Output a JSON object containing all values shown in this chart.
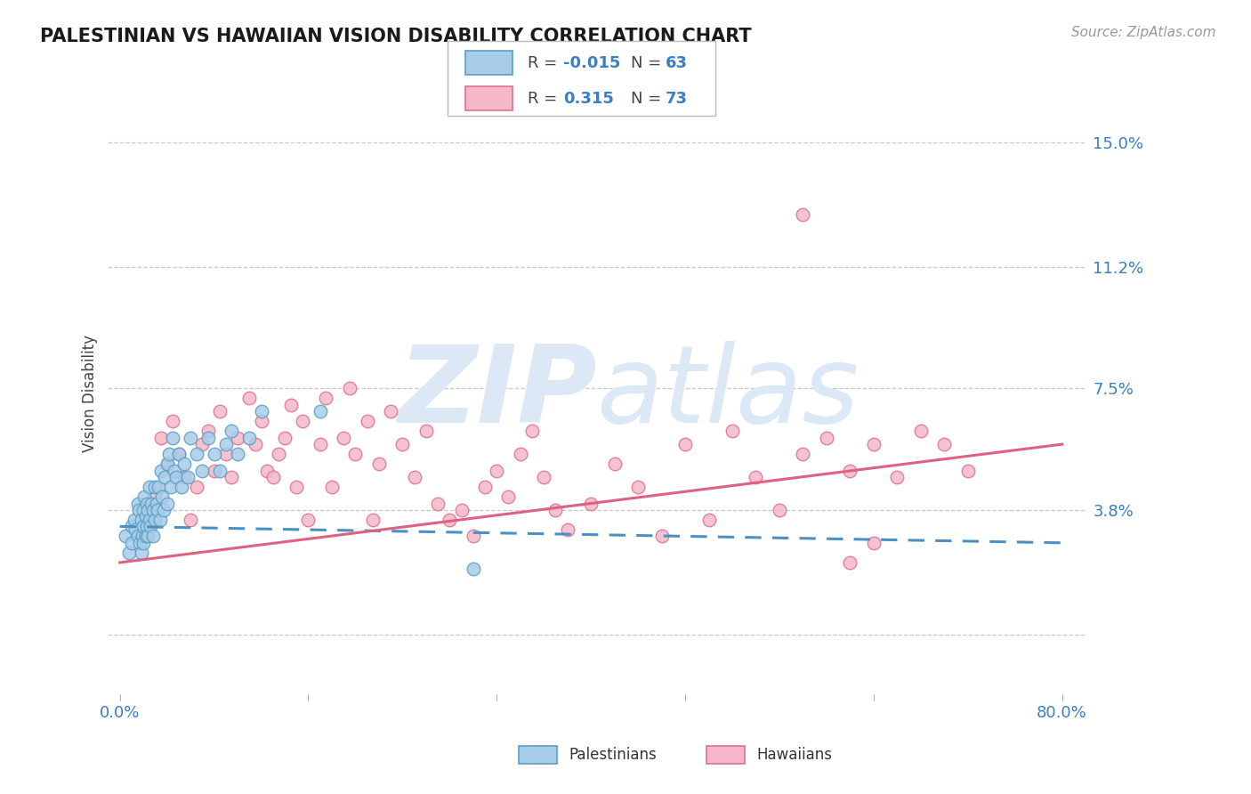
{
  "title": "PALESTINIAN VS HAWAIIAN VISION DISABILITY CORRELATION CHART",
  "source": "Source: ZipAtlas.com",
  "ylabel": "Vision Disability",
  "xlim": [
    -0.01,
    0.82
  ],
  "ylim": [
    -0.018,
    0.165
  ],
  "yticks": [
    0.0,
    0.038,
    0.075,
    0.112,
    0.15
  ],
  "ytick_labels": [
    "",
    "3.8%",
    "7.5%",
    "11.2%",
    "15.0%"
  ],
  "xticks": [
    0.0,
    0.16,
    0.32,
    0.48,
    0.64,
    0.8
  ],
  "xtick_labels": [
    "0.0%",
    "",
    "",
    "",
    "",
    "80.0%"
  ],
  "pal_color": "#a8cce8",
  "haw_color": "#f4b8c8",
  "pal_edge_color": "#5b9fc7",
  "haw_edge_color": "#e07090",
  "pal_line_color": "#4a90c4",
  "haw_line_color": "#e06080",
  "grid_color": "#c8c8c8",
  "background_color": "#ffffff",
  "watermark_color": "#dce8f5",
  "pal_scatter_x": [
    0.005,
    0.008,
    0.01,
    0.01,
    0.012,
    0.013,
    0.015,
    0.015,
    0.016,
    0.017,
    0.018,
    0.018,
    0.019,
    0.02,
    0.02,
    0.02,
    0.021,
    0.022,
    0.022,
    0.023,
    0.023,
    0.024,
    0.024,
    0.025,
    0.025,
    0.026,
    0.027,
    0.028,
    0.028,
    0.03,
    0.03,
    0.031,
    0.032,
    0.033,
    0.034,
    0.035,
    0.036,
    0.037,
    0.038,
    0.04,
    0.04,
    0.042,
    0.043,
    0.045,
    0.046,
    0.048,
    0.05,
    0.052,
    0.055,
    0.058,
    0.06,
    0.065,
    0.07,
    0.075,
    0.08,
    0.085,
    0.09,
    0.095,
    0.1,
    0.11,
    0.12,
    0.17,
    0.3
  ],
  "pal_scatter_y": [
    0.03,
    0.025,
    0.033,
    0.028,
    0.035,
    0.032,
    0.04,
    0.03,
    0.038,
    0.028,
    0.035,
    0.025,
    0.03,
    0.038,
    0.033,
    0.028,
    0.042,
    0.036,
    0.03,
    0.04,
    0.033,
    0.038,
    0.03,
    0.045,
    0.035,
    0.033,
    0.04,
    0.038,
    0.03,
    0.045,
    0.035,
    0.04,
    0.038,
    0.045,
    0.035,
    0.05,
    0.042,
    0.038,
    0.048,
    0.052,
    0.04,
    0.055,
    0.045,
    0.06,
    0.05,
    0.048,
    0.055,
    0.045,
    0.052,
    0.048,
    0.06,
    0.055,
    0.05,
    0.06,
    0.055,
    0.05,
    0.058,
    0.062,
    0.055,
    0.06,
    0.068,
    0.068,
    0.02
  ],
  "haw_scatter_x": [
    0.018,
    0.025,
    0.03,
    0.035,
    0.04,
    0.045,
    0.05,
    0.055,
    0.06,
    0.065,
    0.07,
    0.075,
    0.08,
    0.085,
    0.09,
    0.095,
    0.1,
    0.11,
    0.115,
    0.12,
    0.125,
    0.13,
    0.135,
    0.14,
    0.145,
    0.15,
    0.155,
    0.16,
    0.17,
    0.175,
    0.18,
    0.19,
    0.195,
    0.2,
    0.21,
    0.215,
    0.22,
    0.23,
    0.24,
    0.25,
    0.26,
    0.27,
    0.28,
    0.29,
    0.3,
    0.31,
    0.32,
    0.33,
    0.34,
    0.35,
    0.36,
    0.37,
    0.38,
    0.4,
    0.42,
    0.44,
    0.46,
    0.48,
    0.5,
    0.52,
    0.54,
    0.56,
    0.58,
    0.6,
    0.62,
    0.64,
    0.66,
    0.68,
    0.7,
    0.72,
    0.58,
    0.62,
    0.64
  ],
  "haw_scatter_y": [
    0.03,
    0.038,
    0.042,
    0.06,
    0.052,
    0.065,
    0.055,
    0.048,
    0.035,
    0.045,
    0.058,
    0.062,
    0.05,
    0.068,
    0.055,
    0.048,
    0.06,
    0.072,
    0.058,
    0.065,
    0.05,
    0.048,
    0.055,
    0.06,
    0.07,
    0.045,
    0.065,
    0.035,
    0.058,
    0.072,
    0.045,
    0.06,
    0.075,
    0.055,
    0.065,
    0.035,
    0.052,
    0.068,
    0.058,
    0.048,
    0.062,
    0.04,
    0.035,
    0.038,
    0.03,
    0.045,
    0.05,
    0.042,
    0.055,
    0.062,
    0.048,
    0.038,
    0.032,
    0.04,
    0.052,
    0.045,
    0.03,
    0.058,
    0.035,
    0.062,
    0.048,
    0.038,
    0.055,
    0.06,
    0.05,
    0.058,
    0.048,
    0.062,
    0.058,
    0.05,
    0.128,
    0.022,
    0.028
  ],
  "pal_trend": [
    0.0,
    0.8,
    0.033,
    0.028
  ],
  "haw_trend": [
    0.0,
    0.8,
    0.022,
    0.058
  ]
}
